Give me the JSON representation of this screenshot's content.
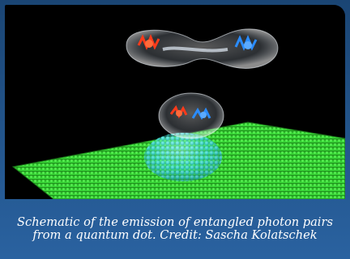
{
  "figure": {
    "caption": "Schematic of the emission of entangled photon pairs from a quantum dot. Credit: Sascha Kolatschek",
    "colors": {
      "frame": "#1e4f7f",
      "background": "#000000",
      "substrate": "#2fcf2a",
      "quantum_dot": "#3fd6c8",
      "photon_red": "#ff3a1a",
      "photon_blue": "#2a8cff"
    }
  }
}
